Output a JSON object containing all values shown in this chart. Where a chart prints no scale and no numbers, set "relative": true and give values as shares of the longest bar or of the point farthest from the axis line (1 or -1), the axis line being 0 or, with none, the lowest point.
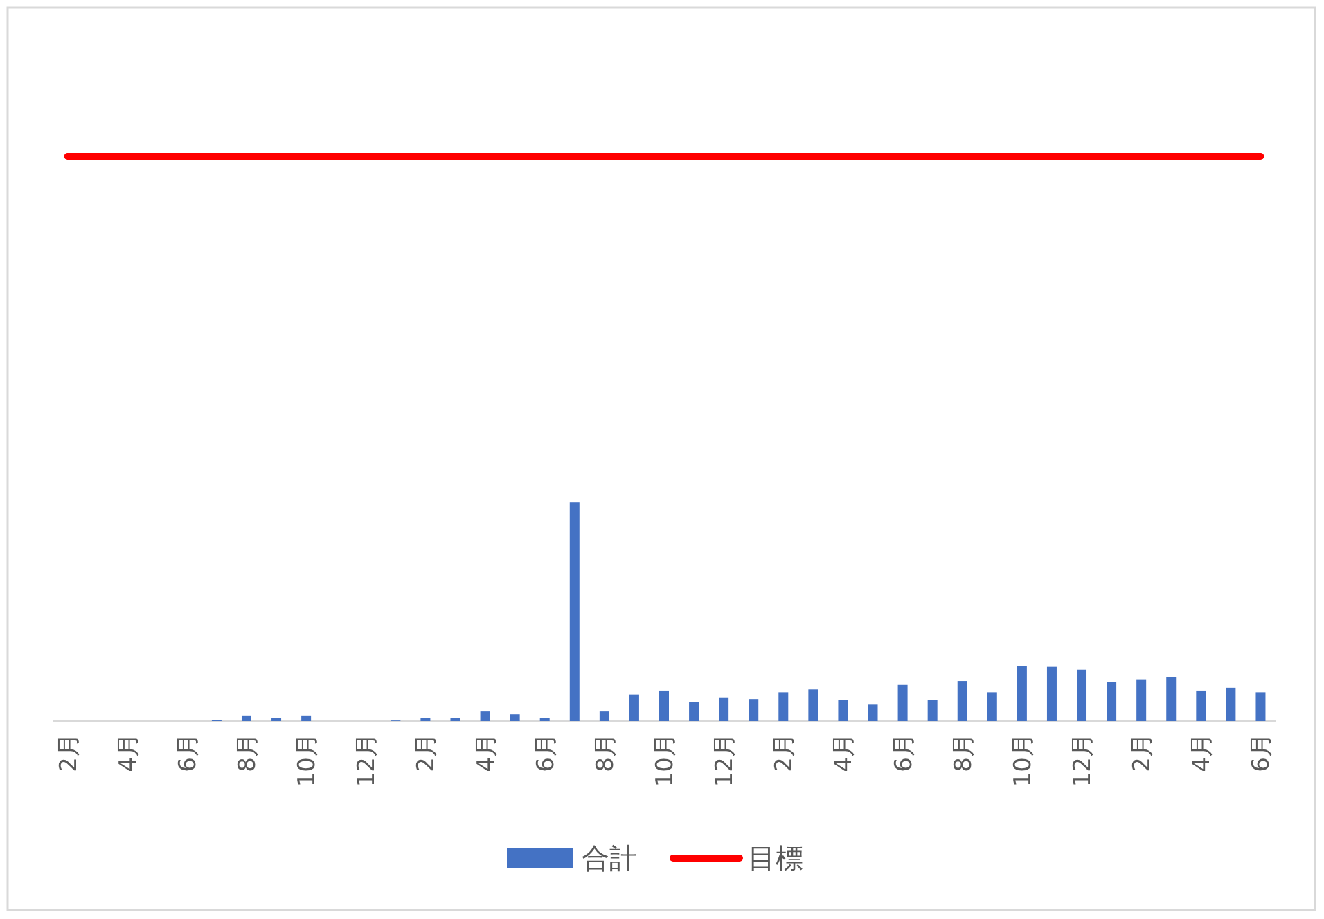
{
  "chart_data": {
    "type": "bar",
    "relative": true,
    "legend": "bottom",
    "categories": [
      "2月",
      null,
      "4月",
      null,
      "6月",
      null,
      "8月",
      null,
      "10月",
      null,
      "12月",
      null,
      "2月",
      null,
      "4月",
      null,
      "6月",
      null,
      "8月",
      null,
      "10月",
      null,
      "12月",
      null,
      "2月",
      null,
      "4月",
      null,
      "6月",
      null,
      "8月",
      null,
      "10月",
      null,
      "12月",
      null,
      "2月",
      null,
      "4月",
      null,
      "6月"
    ],
    "series": [
      {
        "name": "合計",
        "color": "#4472c4",
        "values": [
          0,
          0,
          0,
          0,
          0,
          0.002,
          0.01,
          0.005,
          0.01,
          0,
          0,
          0.001,
          0.005,
          0.005,
          0.017,
          0.012,
          0.005,
          0.387,
          0.017,
          0.047,
          0.054,
          0.034,
          0.042,
          0.039,
          0.051,
          0.056,
          0.037,
          0.029,
          0.064,
          0.037,
          0.071,
          0.051,
          0.098,
          0.096,
          0.091,
          0.069,
          0.074,
          0.078,
          0.054,
          0.059,
          0.051
        ]
      },
      {
        "name": "目標",
        "type": "line",
        "color": "#ff0000",
        "values": [
          1,
          1,
          1,
          1,
          1,
          1,
          1,
          1,
          1,
          1,
          1,
          1,
          1,
          1,
          1,
          1,
          1,
          1,
          1,
          1,
          1,
          1,
          1,
          1,
          1,
          1,
          1,
          1,
          1,
          1,
          1,
          1,
          1,
          1,
          1,
          1,
          1,
          1,
          1,
          1,
          1
        ]
      }
    ]
  }
}
